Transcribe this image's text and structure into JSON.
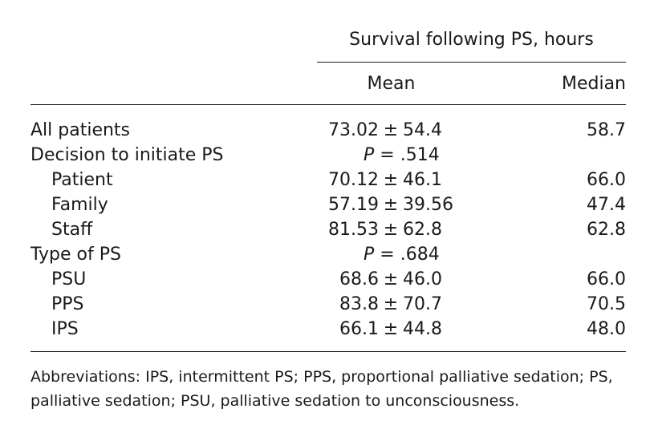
{
  "table": {
    "group_header": "Survival following PS, hours",
    "columns": {
      "mean": "Mean",
      "median": "Median"
    },
    "rows": [
      {
        "label": "All patients",
        "indent": false,
        "mean": "73.02",
        "pm": "±",
        "sd": "54.4",
        "median": "58.7"
      },
      {
        "label": "Decision to initiate PS",
        "indent": false,
        "p_symbol": "P",
        "p_value": "= .514"
      },
      {
        "label": "Patient",
        "indent": true,
        "mean": "70.12",
        "pm": "±",
        "sd": "46.1",
        "median": "66.0"
      },
      {
        "label": "Family",
        "indent": true,
        "mean": "57.19",
        "pm": "±",
        "sd": "39.56",
        "median": "47.4"
      },
      {
        "label": "Staff",
        "indent": true,
        "mean": "81.53",
        "pm": "±",
        "sd": "62.8",
        "median": "62.8"
      },
      {
        "label": "Type of PS",
        "indent": false,
        "p_symbol": "P",
        "p_value": "= .684"
      },
      {
        "label": "PSU",
        "indent": true,
        "mean": "68.6",
        "pm": "±",
        "sd": "46.0",
        "median": "66.0"
      },
      {
        "label": "PPS",
        "indent": true,
        "mean": "83.8",
        "pm": "±",
        "sd": "70.7",
        "median": "70.5"
      },
      {
        "label": "IPS",
        "indent": true,
        "mean": "66.1",
        "pm": "±",
        "sd": "44.8",
        "median": "48.0"
      }
    ]
  },
  "footnote": {
    "line1": "Abbreviations: IPS, intermittent PS; PPS, proportional palliative sedation; PS,",
    "line2": "palliative sedation; PSU, palliative sedation to unconsciousness."
  }
}
